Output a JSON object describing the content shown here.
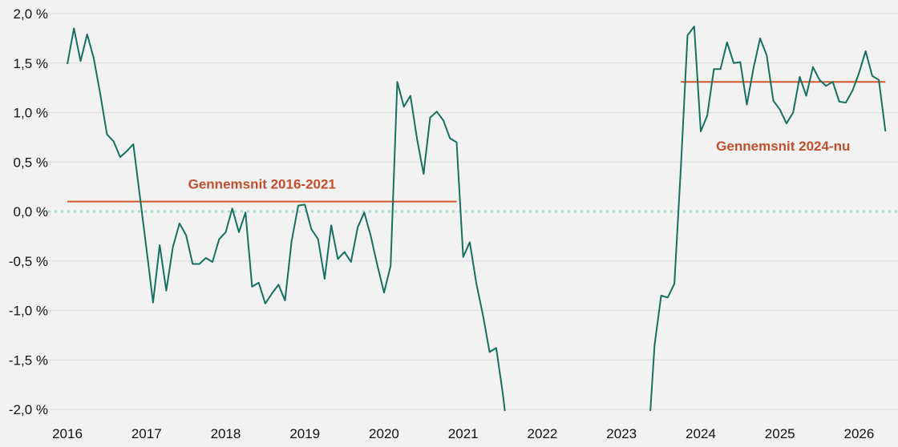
{
  "chart_data": {
    "type": "line",
    "title": "",
    "xlabel": "",
    "ylabel": "",
    "xlim": [
      2016.0,
      2026.35
    ],
    "ylim": [
      -2.0,
      2.0
    ],
    "grid": true,
    "colors": {
      "series": "#16705f",
      "average": "#d0562f",
      "zero_line": "#a9dccb",
      "grid": "#dcdcdc",
      "text_accent": "#c24f2c"
    },
    "y_ticks": [
      {
        "value": 2.0,
        "label": "2,0 %"
      },
      {
        "value": 1.5,
        "label": "1,5 %"
      },
      {
        "value": 1.0,
        "label": "1,0 %"
      },
      {
        "value": 0.5,
        "label": "0,5 %"
      },
      {
        "value": 0.0,
        "label": "0,0 %"
      },
      {
        "value": -0.5,
        "label": "-0,5 %"
      },
      {
        "value": -1.0,
        "label": "-1,0 %"
      },
      {
        "value": -1.5,
        "label": "-1,5 %"
      },
      {
        "value": -2.0,
        "label": "-2,0 %"
      }
    ],
    "x_ticks": [
      {
        "value": 2016,
        "label": "2016"
      },
      {
        "value": 2017,
        "label": "2017"
      },
      {
        "value": 2018,
        "label": "2018"
      },
      {
        "value": 2019,
        "label": "2019"
      },
      {
        "value": 2020,
        "label": "2020"
      },
      {
        "value": 2021,
        "label": "2021"
      },
      {
        "value": 2022,
        "label": "2022"
      },
      {
        "value": 2023,
        "label": "2023"
      },
      {
        "value": 2024,
        "label": "2024"
      },
      {
        "value": 2025,
        "label": "2025"
      },
      {
        "value": 2026,
        "label": "2026"
      }
    ],
    "series": [
      {
        "points": [
          [
            2016.0,
            1.49
          ],
          [
            2016.083,
            1.85
          ],
          [
            2016.167,
            1.52
          ],
          [
            2016.25,
            1.79
          ],
          [
            2016.333,
            1.55
          ],
          [
            2016.417,
            1.18
          ],
          [
            2016.5,
            0.78
          ],
          [
            2016.583,
            0.71
          ],
          [
            2016.667,
            0.55
          ],
          [
            2016.75,
            0.61
          ],
          [
            2016.833,
            0.68
          ],
          [
            2016.917,
            0.15
          ],
          [
            2017.0,
            -0.38
          ],
          [
            2017.083,
            -0.92
          ],
          [
            2017.167,
            -0.34
          ],
          [
            2017.25,
            -0.8
          ],
          [
            2017.333,
            -0.36
          ],
          [
            2017.417,
            -0.12
          ],
          [
            2017.5,
            -0.24
          ],
          [
            2017.583,
            -0.53
          ],
          [
            2017.667,
            -0.53
          ],
          [
            2017.75,
            -0.47
          ],
          [
            2017.833,
            -0.51
          ],
          [
            2017.917,
            -0.28
          ],
          [
            2018.0,
            -0.21
          ],
          [
            2018.083,
            0.03
          ],
          [
            2018.167,
            -0.21
          ],
          [
            2018.25,
            -0.01
          ],
          [
            2018.333,
            -0.76
          ],
          [
            2018.417,
            -0.72
          ],
          [
            2018.5,
            -0.93
          ],
          [
            2018.583,
            -0.83
          ],
          [
            2018.667,
            -0.74
          ],
          [
            2018.75,
            -0.9
          ],
          [
            2018.833,
            -0.3
          ],
          [
            2018.917,
            0.06
          ],
          [
            2019.0,
            0.07
          ],
          [
            2019.083,
            -0.18
          ],
          [
            2019.167,
            -0.28
          ],
          [
            2019.25,
            -0.68
          ],
          [
            2019.333,
            -0.14
          ],
          [
            2019.417,
            -0.48
          ],
          [
            2019.5,
            -0.41
          ],
          [
            2019.583,
            -0.51
          ],
          [
            2019.667,
            -0.16
          ],
          [
            2019.75,
            -0.01
          ],
          [
            2019.833,
            -0.25
          ],
          [
            2019.917,
            -0.55
          ],
          [
            2020.0,
            -0.82
          ],
          [
            2020.083,
            -0.55
          ],
          [
            2020.167,
            1.31
          ],
          [
            2020.25,
            1.06
          ],
          [
            2020.333,
            1.17
          ],
          [
            2020.417,
            0.73
          ],
          [
            2020.5,
            0.38
          ],
          [
            2020.583,
            0.95
          ],
          [
            2020.667,
            1.01
          ],
          [
            2020.75,
            0.92
          ],
          [
            2020.833,
            0.74
          ],
          [
            2020.917,
            0.7
          ],
          [
            2021.0,
            -0.46
          ],
          [
            2021.083,
            -0.31
          ],
          [
            2021.167,
            -0.73
          ],
          [
            2021.25,
            -1.05
          ],
          [
            2021.333,
            -1.42
          ],
          [
            2021.417,
            -1.38
          ],
          [
            2021.5,
            -1.84
          ],
          [
            2021.583,
            -2.4
          ],
          [
            2023.333,
            -2.4
          ],
          [
            2023.417,
            -1.35
          ],
          [
            2023.5,
            -0.85
          ],
          [
            2023.583,
            -0.87
          ],
          [
            2023.667,
            -0.73
          ],
          [
            2023.75,
            0.46
          ],
          [
            2023.833,
            1.78
          ],
          [
            2023.917,
            1.87
          ],
          [
            2024.0,
            0.81
          ],
          [
            2024.083,
            0.97
          ],
          [
            2024.167,
            1.44
          ],
          [
            2024.25,
            1.44
          ],
          [
            2024.333,
            1.71
          ],
          [
            2024.417,
            1.5
          ],
          [
            2024.5,
            1.51
          ],
          [
            2024.583,
            1.08
          ],
          [
            2024.667,
            1.45
          ],
          [
            2024.75,
            1.75
          ],
          [
            2024.833,
            1.58
          ],
          [
            2024.917,
            1.12
          ],
          [
            2025.0,
            1.03
          ],
          [
            2025.083,
            0.89
          ],
          [
            2025.167,
            1.0
          ],
          [
            2025.25,
            1.36
          ],
          [
            2025.333,
            1.17
          ],
          [
            2025.417,
            1.46
          ],
          [
            2025.5,
            1.33
          ],
          [
            2025.583,
            1.27
          ],
          [
            2025.667,
            1.31
          ],
          [
            2025.75,
            1.11
          ],
          [
            2025.833,
            1.1
          ],
          [
            2025.917,
            1.22
          ],
          [
            2026.0,
            1.4
          ],
          [
            2026.083,
            1.62
          ],
          [
            2026.167,
            1.37
          ],
          [
            2026.25,
            1.33
          ],
          [
            2026.333,
            0.81
          ]
        ]
      }
    ],
    "averages": [
      {
        "label": "Gennemsnit 2016-2021",
        "value": 0.1,
        "x_start": 2016.0,
        "x_end": 2020.917
      },
      {
        "label": "Gennemsnit 2024-nu",
        "value": 1.31,
        "x_start": 2023.75,
        "x_end": 2026.333
      }
    ]
  }
}
